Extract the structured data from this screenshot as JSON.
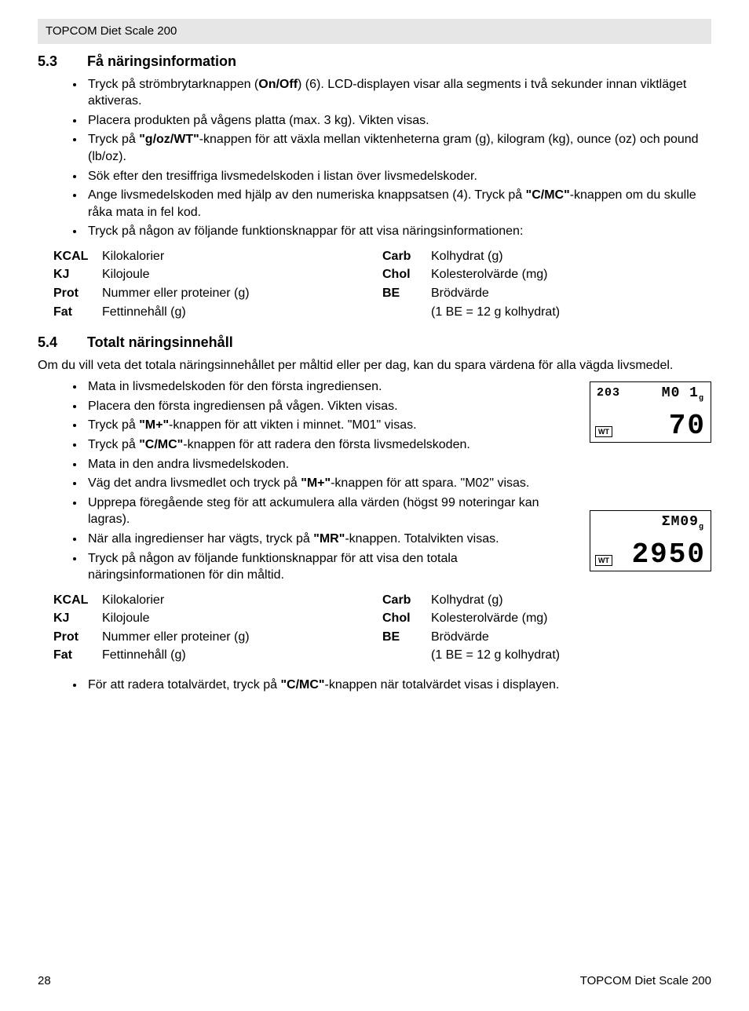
{
  "header": {
    "title": "TOPCOM Diet Scale 200"
  },
  "section53": {
    "num": "5.3",
    "title": "Få näringsinformation",
    "bullets": [
      [
        {
          "t": "Tryck på strömbrytarknappen ("
        },
        {
          "t": "On/Off",
          "b": true
        },
        {
          "t": ") (6). LCD-displayen visar alla segments i två sekunder innan viktläget aktiveras."
        }
      ],
      [
        {
          "t": "Placera produkten på vågens platta (max. 3 kg). Vikten visas."
        }
      ],
      [
        {
          "t": "Tryck på "
        },
        {
          "t": "\"g/oz/WT\"",
          "b": true
        },
        {
          "t": "-knappen för att växla mellan viktenheterna gram (g), kilogram (kg), ounce (oz) och pound (lb/oz)."
        }
      ],
      [
        {
          "t": "Sök efter den tresiffriga livsmedelskoden i listan över livsmedelskoder."
        }
      ],
      [
        {
          "t": "Ange livsmedelskoden med hjälp av den numeriska knappsatsen (4). Tryck på "
        },
        {
          "t": "\"C/MC\"",
          "b": true
        },
        {
          "t": "-knappen om du skulle råka mata in fel kod."
        }
      ],
      [
        {
          "t": "Tryck på någon av följande funktionsknappar för att visa näringsinformationen:"
        }
      ]
    ]
  },
  "nutri_left": [
    {
      "k": "KCAL",
      "v": "Kilokalorier"
    },
    {
      "k": "KJ",
      "v": "Kilojoule"
    },
    {
      "k": "Prot",
      "v": "Nummer eller proteiner (g)"
    },
    {
      "k": "Fat",
      "v": "Fettinnehåll (g)"
    }
  ],
  "nutri_right": [
    {
      "k": "Carb",
      "v": "Kolhydrat (g)"
    },
    {
      "k": "Chol",
      "v": "Kolesterolvärde (mg)"
    },
    {
      "k": "BE",
      "v": "Brödvärde"
    }
  ],
  "nutri_note": "(1 BE = 12 g kolhydrat)",
  "section54": {
    "num": "5.4",
    "title": "Totalt näringsinnehåll",
    "intro": "Om du vill veta det totala näringsinnehållet per måltid eller per dag, kan du spara värdena för alla vägda livsmedel.",
    "bullets": [
      [
        {
          "t": "Mata in livsmedelskoden för den första ingrediensen."
        }
      ],
      [
        {
          "t": "Placera den första ingrediensen på vågen. Vikten visas."
        }
      ],
      [
        {
          "t": "Tryck på "
        },
        {
          "t": "\"M+\"",
          "b": true
        },
        {
          "t": "-knappen för att vikten i minnet. \"M01\" visas."
        }
      ],
      [
        {
          "t": "Tryck på "
        },
        {
          "t": "\"C/MC\"",
          "b": true
        },
        {
          "t": "-knappen för att radera den första livsmedelskoden."
        }
      ],
      [
        {
          "t": "Mata in den andra livsmedelskoden."
        }
      ],
      [
        {
          "t": "Väg det andra livsmedlet och tryck på "
        },
        {
          "t": "\"M+\"",
          "b": true
        },
        {
          "t": "-knappen för att spara. \"M02\" visas."
        }
      ],
      [
        {
          "t": "Upprepa föregående steg för att ackumulera alla värden (högst 99 noteringar kan lagras)."
        }
      ],
      [
        {
          "t": "När alla ingredienser har vägts, tryck på "
        },
        {
          "t": "\"MR\"",
          "b": true
        },
        {
          "t": "-knappen. Totalvikten visas."
        }
      ],
      [
        {
          "t": "Tryck på någon av följande funktionsknappar för att visa den totala näringsinformationen för din måltid."
        }
      ]
    ],
    "final_bullet": [
      {
        "t": "För att radera totalvärdet, tryck på "
      },
      {
        "t": "\"C/MC\"",
        "b": true
      },
      {
        "t": "-knappen när totalvärdet visas i displayen."
      }
    ]
  },
  "lcd1": {
    "tl": "203",
    "tr": "M0 1",
    "unit": "g",
    "big": "70",
    "wt": "WT"
  },
  "lcd2": {
    "tr": "ΣM09",
    "unit": "g",
    "big": "2950",
    "wt": "WT"
  },
  "footer": {
    "page": "28",
    "right": "TOPCOM Diet Scale 200"
  }
}
